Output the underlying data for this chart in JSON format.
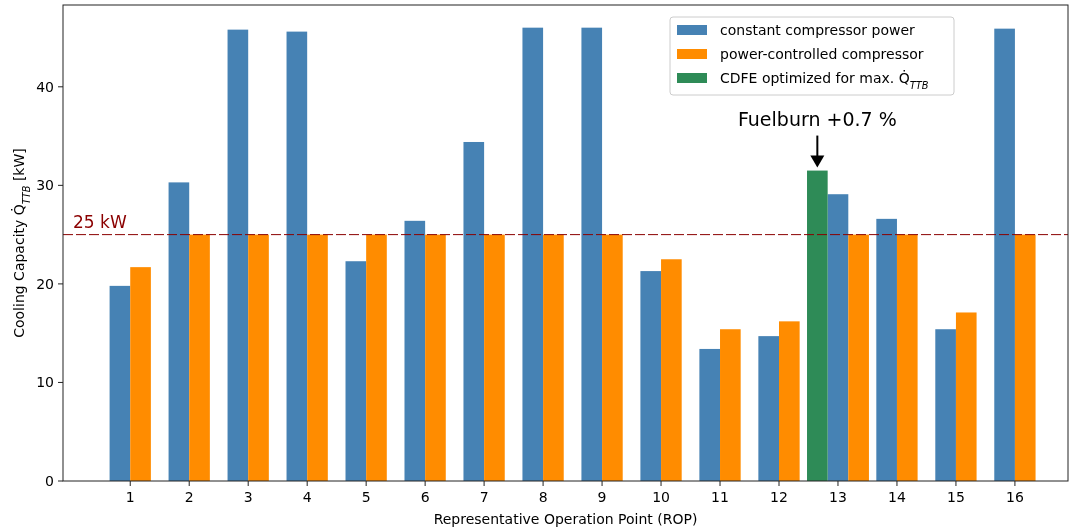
{
  "chart_data": {
    "type": "bar",
    "xlabel": "Representative Operation Point (ROP)",
    "ylabel": "Cooling Capacity Q̇$_{TTB}$ [kW]",
    "categories": [
      "1",
      "2",
      "3",
      "4",
      "5",
      "6",
      "7",
      "8",
      "9",
      "10",
      "11",
      "12",
      "13",
      "14",
      "15",
      "16"
    ],
    "series": [
      {
        "name": "constant compressor power",
        "color": "#4682b4",
        "values": [
          19.8,
          30.3,
          45.8,
          45.6,
          22.3,
          26.4,
          34.4,
          46.0,
          46.0,
          21.3,
          13.4,
          14.7,
          29.1,
          26.6,
          15.4,
          45.9
        ]
      },
      {
        "name": "power-controlled compressor",
        "color": "#ff8c00",
        "values": [
          21.7,
          25,
          25,
          25,
          25,
          25,
          25,
          25,
          25,
          22.5,
          15.4,
          16.2,
          25,
          25,
          17.1,
          25
        ]
      },
      {
        "name": "CDFE optimized for max. Q̇$_{TTB}$",
        "color": "#2e8b57",
        "values": [
          null,
          null,
          null,
          null,
          null,
          null,
          null,
          null,
          null,
          null,
          null,
          null,
          31.5,
          null,
          null,
          null
        ]
      }
    ],
    "ylim": [
      0,
      48.3
    ],
    "yticks": [
      0,
      10,
      20,
      30,
      40
    ],
    "grid": false,
    "legend": "top right",
    "ref_lines": [
      {
        "axis": "y",
        "value": 25,
        "label": "25 kW",
        "color": "#8b0000",
        "line_style": "dashed"
      }
    ],
    "annotations": [
      "Fuelburn +0.7 %"
    ]
  }
}
